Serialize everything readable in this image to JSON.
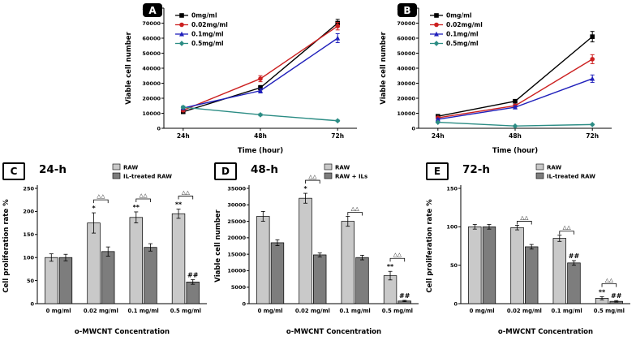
{
  "figure": {
    "background": "#ffffff",
    "bar_light_color": "#c9c9c9",
    "bar_dark_color": "#7d7d7d"
  },
  "chart_data": [
    {
      "panel": "A",
      "type": "line",
      "title": "",
      "xlabel": "Time (hour)",
      "ylabel": "Viable cell number",
      "x": [
        "24h",
        "48h",
        "72h"
      ],
      "ylim": [
        0,
        80000
      ],
      "ytick": 10000,
      "legend_position": "upper-left",
      "grid": false,
      "series": [
        {
          "name": "0mg/ml",
          "color": "#000000",
          "marker": "square",
          "values": [
            11000,
            27000,
            70000
          ],
          "errors": [
            1200,
            1500,
            2500
          ]
        },
        {
          "name": "0.02mg/ml",
          "color": "#cc2020",
          "marker": "circle",
          "values": [
            12000,
            33000,
            68000
          ],
          "errors": [
            1000,
            2000,
            2500
          ]
        },
        {
          "name": "0.1mg/ml",
          "color": "#2020bb",
          "marker": "triangle",
          "values": [
            13500,
            25000,
            60000
          ],
          "errors": [
            1000,
            1500,
            3000
          ]
        },
        {
          "name": "0.5mg/ml",
          "color": "#2b8c84",
          "marker": "diamond",
          "values": [
            14000,
            9000,
            5000
          ],
          "errors": [
            800,
            700,
            500
          ]
        }
      ]
    },
    {
      "panel": "B",
      "type": "line",
      "title": "",
      "xlabel": "Time (hour)",
      "ylabel": "Viable cell number",
      "x": [
        "24h",
        "48h",
        "72h"
      ],
      "ylim": [
        0,
        80000
      ],
      "ytick": 10000,
      "legend_position": "upper-left",
      "grid": false,
      "series": [
        {
          "name": "0mg/ml",
          "color": "#000000",
          "marker": "square",
          "values": [
            8000,
            18000,
            61000
          ],
          "errors": [
            700,
            1200,
            3500
          ]
        },
        {
          "name": "0.02mg/ml",
          "color": "#cc2020",
          "marker": "circle",
          "values": [
            7000,
            15000,
            46000
          ],
          "errors": [
            600,
            1000,
            3000
          ]
        },
        {
          "name": "0.1mg/ml",
          "color": "#2020bb",
          "marker": "triangle",
          "values": [
            6000,
            14000,
            33000
          ],
          "errors": [
            500,
            900,
            2500
          ]
        },
        {
          "name": "0.5mg/ml",
          "color": "#2b8c84",
          "marker": "diamond",
          "values": [
            4000,
            1500,
            2500
          ],
          "errors": [
            400,
            300,
            300
          ]
        }
      ]
    },
    {
      "panel": "C",
      "type": "bar",
      "title": "24-h",
      "xlabel": "o-MWCNT Concentration",
      "ylabel": "Cell proliferation rate %",
      "categories": [
        "0 mg/ml",
        "0.02 mg/ml",
        "0.1 mg/ml",
        "0.5 mg/ml"
      ],
      "ylim": [
        0,
        250
      ],
      "ytick": 50,
      "legend_position": "upper-right",
      "grid": false,
      "series": [
        {
          "name": "RAW",
          "color": "#c9c9c9",
          "values": [
            100,
            175,
            187,
            195
          ],
          "errors": [
            8,
            22,
            12,
            10
          ],
          "marks": [
            "",
            "*",
            "**",
            "**"
          ]
        },
        {
          "name": "IL-treated RAW",
          "color": "#7d7d7d",
          "values": [
            100,
            113,
            122,
            47
          ],
          "errors": [
            7,
            10,
            8,
            5
          ],
          "marks": [
            "",
            "",
            "",
            "##"
          ]
        }
      ],
      "brackets": [
        "",
        "△△",
        "△△",
        "△△"
      ]
    },
    {
      "panel": "D",
      "type": "bar",
      "title": "48-h",
      "xlabel": "o-MWCNT Concentration",
      "ylabel": "Viable cell number",
      "categories": [
        "0 mg/ml",
        "0.02 mg/ml",
        "0.1 mg/ml",
        "0.5 mg/ml"
      ],
      "ylim": [
        0,
        35000
      ],
      "ytick": 5000,
      "legend_position": "upper-right",
      "grid": false,
      "series": [
        {
          "name": "RAW",
          "color": "#c9c9c9",
          "values": [
            26500,
            32000,
            25000,
            8500
          ],
          "errors": [
            1500,
            1500,
            1500,
            1300
          ],
          "marks": [
            "",
            "*",
            "",
            "**"
          ]
        },
        {
          "name": "RAW + ILs",
          "color": "#7d7d7d",
          "values": [
            18500,
            14800,
            14000,
            800
          ],
          "errors": [
            900,
            600,
            700,
            200
          ],
          "marks": [
            "",
            "",
            "",
            "##"
          ]
        }
      ],
      "brackets": [
        "",
        "△△",
        "△△",
        "△△"
      ]
    },
    {
      "panel": "E",
      "type": "bar",
      "title": "72-h",
      "xlabel": "o-MWCNT Concentration",
      "ylabel": "Cell proliferation rate %",
      "categories": [
        "0 mg/ml",
        "0.02 mg/ml",
        "0.1 mg/ml",
        "0.5 mg/ml"
      ],
      "ylim": [
        0,
        150
      ],
      "ytick": 50,
      "legend_position": "upper-right",
      "grid": false,
      "series": [
        {
          "name": "RAW",
          "color": "#c9c9c9",
          "values": [
            100,
            99,
            85,
            7
          ],
          "errors": [
            3,
            3,
            4,
            2
          ],
          "marks": [
            "",
            "",
            "",
            "**"
          ]
        },
        {
          "name": "IL-treated RAW",
          "color": "#7d7d7d",
          "values": [
            100,
            74,
            53,
            3
          ],
          "errors": [
            3,
            3,
            3,
            1
          ],
          "marks": [
            "",
            "",
            "##",
            "##"
          ]
        }
      ],
      "brackets": [
        "",
        "△△",
        "△△",
        "△△"
      ]
    }
  ]
}
